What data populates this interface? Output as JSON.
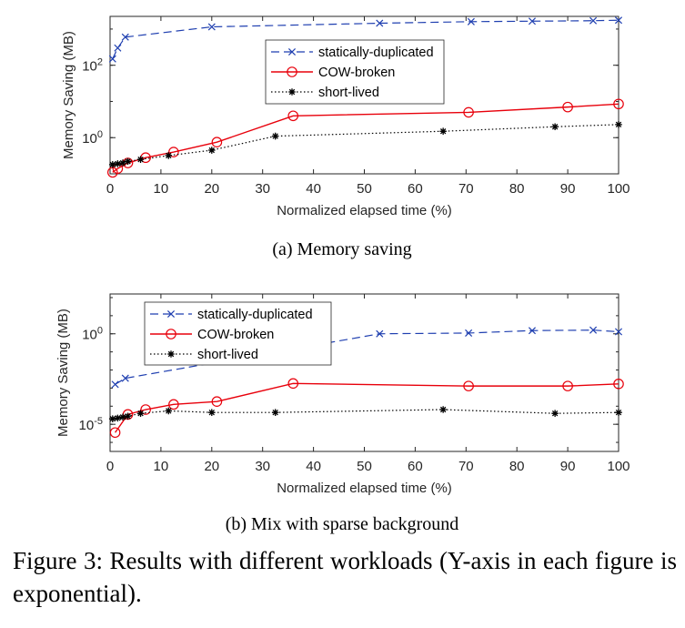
{
  "caption": "Figure 3: Results with different workloads (Y-axis in each figure is exponential).",
  "colors": {
    "dup": "#1f3fb0",
    "cow": "#e8000b",
    "short": "#000000"
  },
  "chart_data": [
    {
      "type": "line",
      "subcaption": "(a) Memory saving",
      "xlabel": "Normalized elapsed time (%)",
      "ylabel": "Memory Saving (MB)",
      "xlim": [
        0,
        100
      ],
      "ylim_log10": [
        -1,
        3.35
      ],
      "yscale": "log",
      "xticks": [
        0,
        10,
        20,
        30,
        40,
        50,
        60,
        70,
        80,
        90,
        100
      ],
      "yticks": [
        {
          "exp": 0,
          "label": "10",
          "sup": "0"
        },
        {
          "exp": 2,
          "label": "10",
          "sup": "2"
        }
      ],
      "legend_position": "top-right",
      "series": [
        {
          "name": "statically-duplicated",
          "key": "dup",
          "x": [
            0.5,
            1.5,
            3,
            20,
            53,
            71,
            83,
            95,
            100
          ],
          "y": [
            150,
            300,
            600,
            1150,
            1450,
            1600,
            1650,
            1700,
            1750
          ]
        },
        {
          "name": "COW-broken",
          "key": "cow",
          "x": [
            0.5,
            1.5,
            3.5,
            7,
            12.5,
            21,
            36,
            70.5,
            90,
            100
          ],
          "y": [
            0.11,
            0.14,
            0.2,
            0.28,
            0.4,
            0.75,
            4,
            5,
            7,
            8.5
          ]
        },
        {
          "name": "short-lived",
          "key": "short",
          "x": [
            0.5,
            1.5,
            2.5,
            3.5,
            6,
            11.5,
            20,
            32.5,
            65.5,
            87.5,
            100
          ],
          "y": [
            0.18,
            0.19,
            0.2,
            0.22,
            0.25,
            0.32,
            0.45,
            1.1,
            1.5,
            2,
            2.3
          ]
        }
      ]
    },
    {
      "type": "line",
      "subcaption": "(b) Mix with sparse background",
      "xlabel": "Normalized elapsed time (%)",
      "ylabel": "Memory Saving (MB)",
      "xlim": [
        0,
        100
      ],
      "ylim_log10": [
        -6.5,
        2.2
      ],
      "yscale": "log",
      "xticks": [
        0,
        10,
        20,
        30,
        40,
        50,
        60,
        70,
        80,
        90,
        100
      ],
      "yticks": [
        {
          "exp": -5,
          "label": "10",
          "sup": "-5"
        },
        {
          "exp": 0,
          "label": "10",
          "sup": "0"
        }
      ],
      "legend_position": "top-left",
      "series": [
        {
          "name": "statically-duplicated",
          "key": "dup",
          "x": [
            1,
            3,
            53,
            70.5,
            83,
            95,
            100
          ],
          "y": [
            0.0016,
            0.0035,
            1.0,
            1.1,
            1.5,
            1.6,
            1.3
          ]
        },
        {
          "name": "COW-broken",
          "key": "cow",
          "x": [
            1,
            3.5,
            7,
            12.5,
            21,
            36,
            70.5,
            90,
            100
          ],
          "y": [
            3.5e-06,
            3.5e-05,
            6.5e-05,
            0.000125,
            0.00018,
            0.0018,
            0.0013,
            0.0013,
            0.0017
          ]
        },
        {
          "name": "short-lived",
          "key": "short",
          "x": [
            0.5,
            1.5,
            2.5,
            3.5,
            6,
            11.5,
            20,
            32.5,
            65.5,
            87.5,
            100
          ],
          "y": [
            2e-05,
            2.2e-05,
            2.5e-05,
            2.8e-05,
            4e-05,
            5.5e-05,
            4.5e-05,
            4.5e-05,
            6.5e-05,
            4e-05,
            4.5e-05
          ]
        }
      ]
    }
  ]
}
